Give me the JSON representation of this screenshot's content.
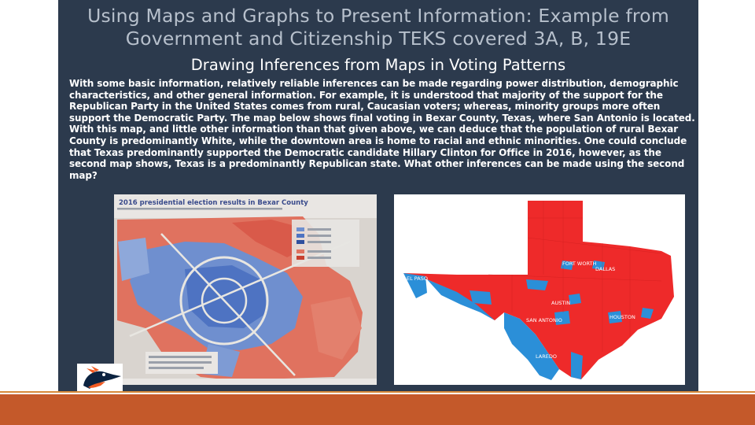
{
  "slide": {
    "title": "Using Maps and Graphs to Present Information: Example from Government and Citizenship TEKS covered 3A, B, 19E",
    "subtitle": "Drawing Inferences from Maps in Voting Patterns",
    "body": "With some basic information, relatively reliable inferences can be made regarding power distribution, demographic characteristics, and other general information. For example, it is understood that majority of the support for the Republican Party in the United States comes from rural, Caucasian voters; whereas, minority groups more often support the Democratic Party. The map below shows final voting in Bexar County, Texas, where San Antonio is located. With this map, and little other information than that given above, we can deduce that the population of rural Bexar County is predominantly White, while the downtown area is home to racial and ethnic minorities. One could conclude that Texas predominantly supported the Democratic candidate Hillary Clinton for Office in 2016, however, as the second map shows, Texas is a predominantly Republican state. What other inferences can be made using the second map?"
  },
  "bexar_map": {
    "title": "2016 presidential election results in Bexar County"
  },
  "texas_map": {
    "city_labels": [
      "EL PASO",
      "FORT WORTH",
      "DALLAS",
      "AUSTIN",
      "SAN ANTONIO",
      "HOUSTON",
      "LAREDO"
    ]
  },
  "colors": {
    "panel": "#2c3a4d",
    "republican_red": "#ee2a2a",
    "democratic_blue": "#2b8fd8",
    "accent_bar": "#c4592a"
  }
}
